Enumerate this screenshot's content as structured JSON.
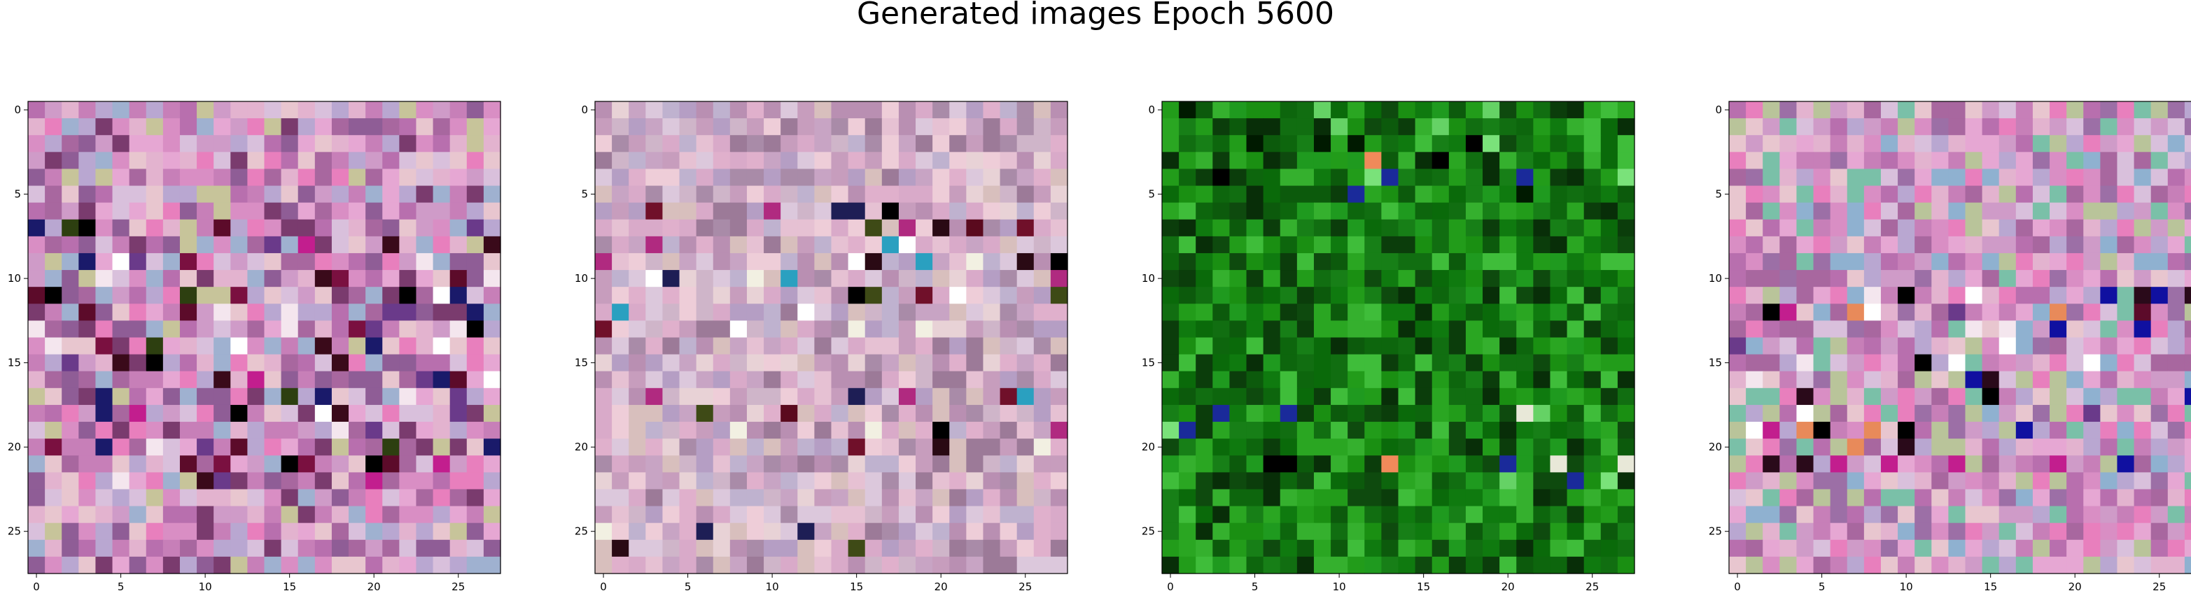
{
  "title": "Generated images Epoch 5600",
  "chart_data": [
    {
      "type": "heatmap",
      "title": "",
      "grid": false,
      "rows": 28,
      "cols": 28,
      "xlim": [
        -0.5,
        27.5
      ],
      "ylim": [
        27.5,
        -0.5
      ],
      "x_ticks": [
        0,
        5,
        10,
        15,
        20,
        25
      ],
      "y_ticks": [
        0,
        5,
        10,
        15,
        20,
        25
      ],
      "palette": [
        "#d98ec4",
        "#c77fb8",
        "#e6a7d3",
        "#b86fae",
        "#cf9bc8",
        "#e3b3cf",
        "#a8679f",
        "#d9c0dc",
        "#8f5d96",
        "#e8c6cf",
        "#b9a7d1",
        "#c7c49a",
        "#9fb1d0",
        "#e87fbd",
        "#7a3b6e"
      ],
      "feature_colors": [
        "#000000",
        "#3a0a1a",
        "#5c0b2a",
        "#1a1a6a",
        "#ffffff",
        "#f4e6ee",
        "#2d3f10",
        "#7a1040",
        "#c21e8e",
        "#6a3a8a"
      ],
      "feature_density": 0.22,
      "feature_rows": [
        7,
        8,
        9,
        10,
        11,
        12,
        13,
        14,
        15,
        16,
        17,
        18,
        19,
        20,
        21,
        22
      ],
      "seed": 11
    },
    {
      "type": "heatmap",
      "title": "",
      "grid": false,
      "rows": 28,
      "cols": 28,
      "xlim": [
        -0.5,
        27.5
      ],
      "ylim": [
        27.5,
        -0.5
      ],
      "x_ticks": [
        0,
        5,
        10,
        15,
        20,
        25
      ],
      "y_ticks": [
        0,
        5,
        10,
        15,
        20,
        25
      ],
      "palette": [
        "#d9aac9",
        "#c79dbd",
        "#e6c1d3",
        "#b98fb2",
        "#cfb5c9",
        "#e8d2d6",
        "#a98ba8",
        "#dcc8dc",
        "#c8a4c4",
        "#eecdd8",
        "#bfb2cf",
        "#d8bfbd",
        "#b59ec4",
        "#e0b0cc",
        "#9c7a98"
      ],
      "feature_colors": [
        "#000000",
        "#2a0a14",
        "#5a0a1e",
        "#1e1e55",
        "#ffffff",
        "#f2f0e2",
        "#3e4a16",
        "#70102a",
        "#b02a80",
        "#2aa0c0"
      ],
      "feature_density": 0.14,
      "feature_rows": [
        6,
        7,
        8,
        9,
        10,
        11,
        12,
        13,
        17,
        18,
        19,
        20,
        25,
        26
      ],
      "seed": 23
    },
    {
      "type": "heatmap",
      "title": "",
      "grid": false,
      "rows": 28,
      "cols": 28,
      "xlim": [
        -0.5,
        27.5
      ],
      "ylim": [
        27.5,
        -0.5
      ],
      "x_ticks": [
        0,
        5,
        10,
        15,
        20,
        25
      ],
      "y_ticks": [
        0,
        5,
        10,
        15,
        20,
        25
      ],
      "palette": [
        "#0f7a0f",
        "#1a8f12",
        "#0a6a0a",
        "#229c1a",
        "#0c5a0c",
        "#2aa622",
        "#0e4a0e",
        "#177f17",
        "#35b02e",
        "#0b3d0b",
        "#1f9a1f",
        "#0d660d",
        "#3fbd3a",
        "#116e11",
        "#082e08"
      ],
      "feature_colors": [
        "#001a00",
        "#000000",
        "#65d265",
        "#7ae27a",
        "#1a2a9a",
        "#f08a5a",
        "#e8e8d8"
      ],
      "feature_density": 0.1,
      "feature_rows": [
        0,
        1,
        2,
        3,
        4,
        5,
        6,
        18,
        19,
        21,
        22
      ],
      "seed": 37
    },
    {
      "type": "heatmap",
      "title": "",
      "grid": false,
      "rows": 28,
      "cols": 28,
      "xlim": [
        -0.5,
        27.5
      ],
      "ylim": [
        27.5,
        -0.5
      ],
      "x_ticks": [
        0,
        5,
        10,
        15,
        20,
        25
      ],
      "y_ticks": [
        0,
        5,
        10,
        15,
        20,
        25
      ],
      "palette": [
        "#d98ec4",
        "#c77fb8",
        "#e6a7d3",
        "#b86fae",
        "#cf9bc8",
        "#e3b3cf",
        "#a8679f",
        "#d9c0dc",
        "#9c6fa6",
        "#e8c6cf",
        "#b9a7d1",
        "#b9c49a",
        "#8fb1d0",
        "#e87fbd",
        "#7ac0a8"
      ],
      "feature_colors": [
        "#000000",
        "#2a0a1a",
        "#5c0b2a",
        "#1010a0",
        "#ffffff",
        "#f4e6ee",
        "#c21e8e",
        "#6a3a8a",
        "#e88a5a"
      ],
      "feature_density": 0.18,
      "feature_rows": [
        11,
        12,
        13,
        14,
        15,
        16,
        17,
        18,
        19,
        20,
        21
      ],
      "seed": 51
    }
  ]
}
